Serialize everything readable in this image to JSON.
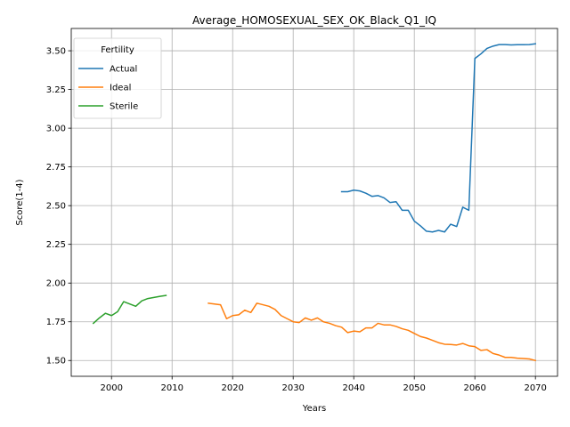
{
  "chart_data": {
    "type": "line",
    "title": "Average_HOMOSEXUAL_SEX_OK_Black_Q1_IQ",
    "xlabel": "Years",
    "ylabel": "Score(1-4)",
    "xlim": [
      1993.35,
      2073.65
    ],
    "ylim": [
      1.398,
      3.644
    ],
    "xticks": [
      2000,
      2010,
      2020,
      2030,
      2040,
      2050,
      2060,
      2070
    ],
    "xtick_labels": [
      "2000",
      "2010",
      "2020",
      "2030",
      "2040",
      "2050",
      "2060",
      "2070"
    ],
    "yticks": [
      1.5,
      1.75,
      2.0,
      2.25,
      2.5,
      2.75,
      3.0,
      3.25,
      3.5
    ],
    "ytick_labels": [
      "1.50",
      "1.75",
      "2.00",
      "2.25",
      "2.50",
      "2.75",
      "3.00",
      "3.25",
      "3.50"
    ],
    "grid": true,
    "legend": {
      "title": "Fertility",
      "placement": "upper-left"
    },
    "series": [
      {
        "name": "Actual",
        "color": "#1f77b4",
        "x": [
          2038,
          2039,
          2040,
          2041,
          2042,
          2043,
          2044,
          2045,
          2046,
          2047,
          2048,
          2049,
          2050,
          2051,
          2052,
          2053,
          2054,
          2055,
          2056,
          2057,
          2058,
          2059,
          2060,
          2061,
          2062,
          2063,
          2064,
          2065,
          2066,
          2067,
          2068,
          2069,
          2070
        ],
        "y": [
          2.59,
          2.59,
          2.6,
          2.595,
          2.58,
          2.56,
          2.565,
          2.55,
          2.52,
          2.525,
          2.47,
          2.47,
          2.4,
          2.37,
          2.335,
          2.33,
          2.34,
          2.33,
          2.38,
          2.365,
          2.49,
          2.47,
          3.45,
          3.48,
          3.515,
          3.53,
          3.54,
          3.54,
          3.538,
          3.539,
          3.539,
          3.54,
          3.545
        ]
      },
      {
        "name": "Ideal",
        "color": "#ff7f0e",
        "x": [
          2016,
          2017,
          2018,
          2019,
          2020,
          2021,
          2022,
          2023,
          2024,
          2025,
          2026,
          2027,
          2028,
          2029,
          2030,
          2031,
          2032,
          2033,
          2034,
          2035,
          2036,
          2037,
          2038,
          2039,
          2040,
          2041,
          2042,
          2043,
          2044,
          2045,
          2046,
          2047,
          2048,
          2049,
          2050,
          2051,
          2052,
          2053,
          2054,
          2055,
          2056,
          2057,
          2058,
          2059,
          2060,
          2061,
          2062,
          2063,
          2064,
          2065,
          2066,
          2067,
          2068,
          2069,
          2070
        ],
        "y": [
          1.87,
          1.865,
          1.86,
          1.77,
          1.79,
          1.795,
          1.825,
          1.81,
          1.87,
          1.86,
          1.85,
          1.83,
          1.79,
          1.77,
          1.75,
          1.745,
          1.775,
          1.76,
          1.775,
          1.75,
          1.74,
          1.725,
          1.715,
          1.68,
          1.69,
          1.685,
          1.71,
          1.71,
          1.74,
          1.73,
          1.73,
          1.72,
          1.705,
          1.695,
          1.675,
          1.655,
          1.645,
          1.63,
          1.615,
          1.605,
          1.603,
          1.6,
          1.61,
          1.595,
          1.59,
          1.565,
          1.57,
          1.545,
          1.535,
          1.52,
          1.52,
          1.515,
          1.513,
          1.51,
          1.5
        ]
      },
      {
        "name": "Sterile",
        "color": "#2ca02c",
        "x": [
          1997,
          1998,
          1999,
          2000,
          2001,
          2002,
          2003,
          2004,
          2005,
          2006,
          2007,
          2008,
          2009
        ],
        "y": [
          1.74,
          1.775,
          1.805,
          1.79,
          1.815,
          1.88,
          1.865,
          1.85,
          1.885,
          1.9,
          1.907,
          1.914,
          1.92
        ]
      }
    ]
  }
}
